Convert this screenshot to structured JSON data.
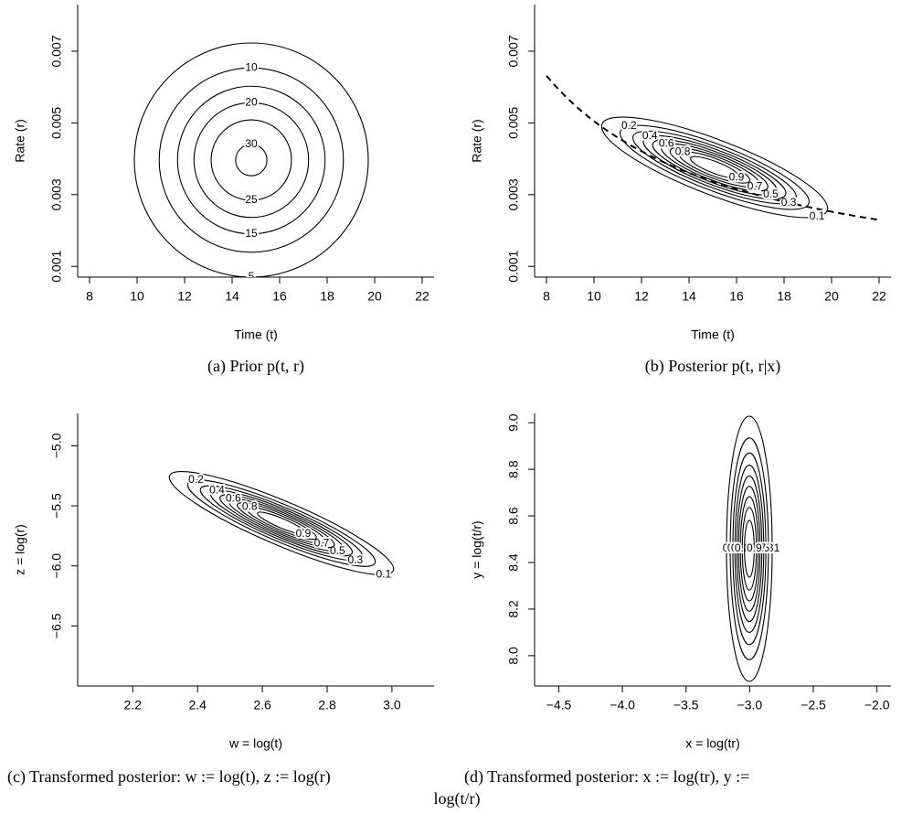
{
  "chart_data": [
    {
      "type": "contour",
      "xlabel": "Time (t)",
      "ylabel": "Rate (r)",
      "caption": [
        "(a) Prior p(t, r)"
      ],
      "xlim": [
        7.5,
        22.5
      ],
      "ylim": [
        0.0007,
        0.0083
      ],
      "xticks": [
        8,
        10,
        12,
        14,
        16,
        18,
        20,
        22
      ],
      "yticks": [
        0.001,
        0.003,
        0.005,
        0.007
      ],
      "levels": [
        5,
        10,
        15,
        20,
        25,
        30
      ]
    },
    {
      "type": "contour",
      "xlabel": "Time (t)",
      "ylabel": "Rate (r)",
      "caption": [
        "(b) Posterior p(t, r|x)"
      ],
      "xlim": [
        7.5,
        22.5
      ],
      "ylim": [
        0.0007,
        0.0083
      ],
      "xticks": [
        8,
        10,
        12,
        14,
        16,
        18,
        20,
        22
      ],
      "yticks": [
        0.001,
        0.003,
        0.005,
        0.007
      ],
      "levels": [
        0.1,
        0.2,
        0.3,
        0.4,
        0.5,
        0.6,
        0.7,
        0.8,
        0.9
      ]
    },
    {
      "type": "contour",
      "xlabel": "w = log(t)",
      "ylabel": "z = log(r)",
      "caption": [
        "(c) Transformed posterior: w := log(t), z := log(r)"
      ],
      "xlim": [
        2.03,
        3.13
      ],
      "ylim": [
        -7.0,
        -4.73
      ],
      "xticks": [
        2.2,
        2.4,
        2.6,
        2.8,
        {
          "value": 3,
          "label": "3.0"
        }
      ],
      "yticks": [
        {
          "value": -5,
          "label": "−5.0"
        },
        {
          "value": -5.5,
          "label": "−5.5"
        },
        {
          "value": -6,
          "label": "−6.0"
        },
        {
          "value": -6.5,
          "label": "−6.5"
        }
      ],
      "levels": [
        0.1,
        0.2,
        0.3,
        0.4,
        0.5,
        0.6,
        0.7,
        0.8,
        0.9
      ]
    },
    {
      "type": "contour",
      "xlabel": "x = log(tr)",
      "ylabel": "y = log(t/r)",
      "caption": [
        "(d)  Transformed  posterior:  x  :=  log(tr),  y  :=",
        "log(t/r)"
      ],
      "xlim": [
        -4.69,
        -1.89
      ],
      "ylim": [
        7.87,
        9.04
      ],
      "xticks": [
        {
          "value": -4.5,
          "label": "−4.5"
        },
        {
          "value": -4,
          "label": "−4.0"
        },
        {
          "value": -3.5,
          "label": "−3.5"
        },
        {
          "value": -3,
          "label": "−3.0"
        },
        {
          "value": -2.5,
          "label": "−2.5"
        },
        {
          "value": -2,
          "label": "−2.0"
        }
      ],
      "yticks": [
        {
          "value": 8,
          "label": "8.0"
        },
        8.2,
        8.4,
        8.6,
        8.8,
        {
          "value": 9,
          "label": "9.0"
        }
      ],
      "levels": [
        0.1,
        0.2,
        0.3,
        0.4,
        0.5,
        0.6,
        0.7,
        0.8,
        0.9
      ]
    }
  ]
}
